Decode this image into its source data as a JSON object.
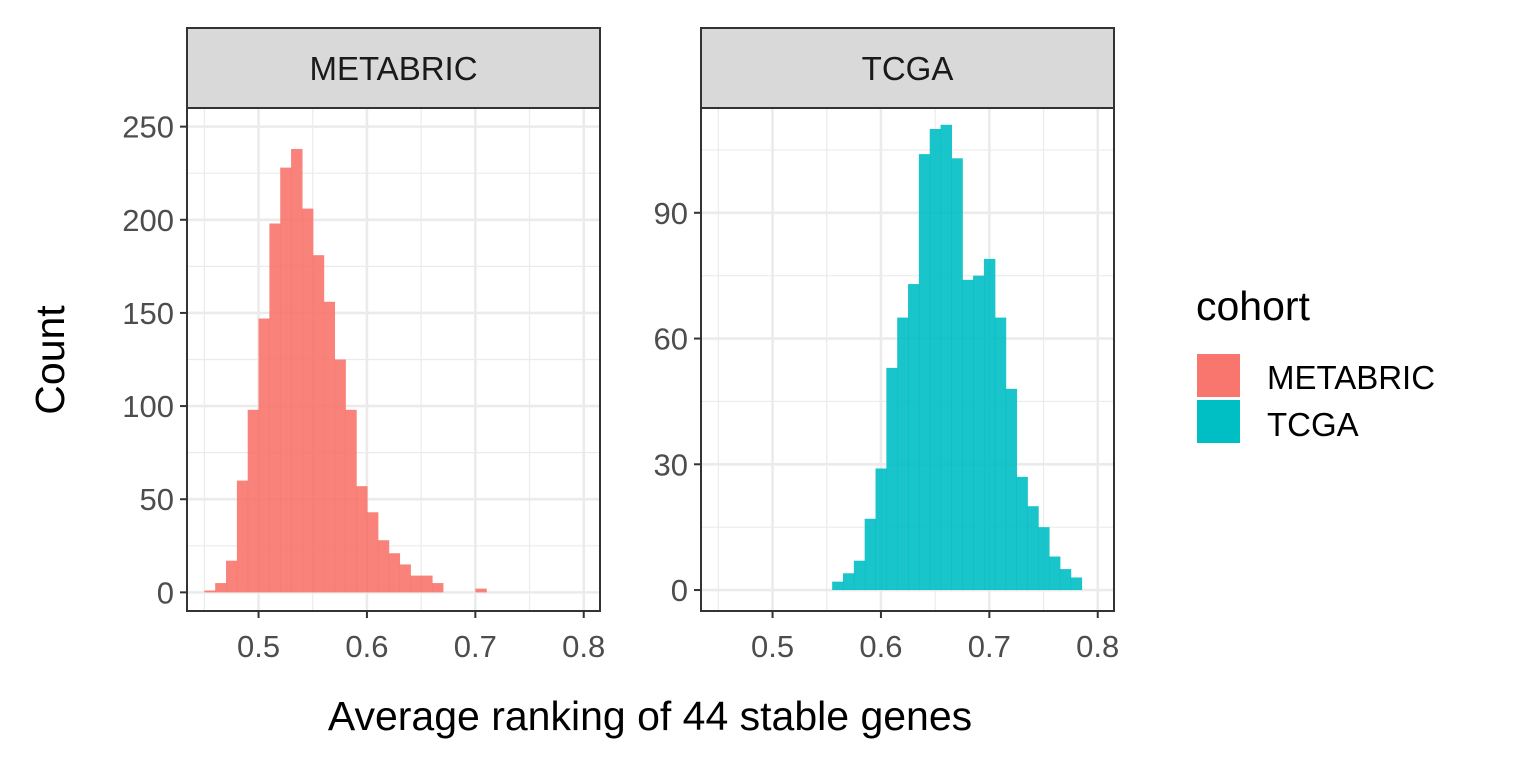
{
  "chart_data": {
    "type": "bar",
    "subtype": "faceted-histogram",
    "xlabel": "Average ranking of 44 stable genes",
    "ylabel": "Count",
    "xlim": [
      0.434,
      0.815
    ],
    "x_ticks": [
      0.5,
      0.6,
      0.7,
      0.8
    ],
    "x_tick_labels": [
      "0.5",
      "0.6",
      "0.7",
      "0.8"
    ],
    "grid": true,
    "legend": {
      "title": "cohort",
      "position": "right",
      "entries": [
        {
          "label": "METABRIC",
          "color": "#F8766D"
        },
        {
          "label": "TCGA",
          "color": "#00BFC4"
        }
      ]
    },
    "facets": [
      {
        "name": "METABRIC",
        "color": "#F8766D",
        "ylim": [
          -10,
          260
        ],
        "y_ticks": [
          0,
          50,
          100,
          150,
          200,
          250
        ],
        "y_tick_labels": [
          "0",
          "50",
          "100",
          "150",
          "200",
          "250"
        ],
        "bin_width": 0.01,
        "bins_x": [
          0.455,
          0.465,
          0.475,
          0.485,
          0.495,
          0.505,
          0.515,
          0.525,
          0.535,
          0.545,
          0.555,
          0.565,
          0.575,
          0.585,
          0.595,
          0.605,
          0.615,
          0.625,
          0.635,
          0.645,
          0.655,
          0.665,
          0.675,
          0.685,
          0.695,
          0.705
        ],
        "values": [
          1,
          5,
          17,
          60,
          98,
          147,
          198,
          228,
          238,
          206,
          181,
          156,
          125,
          98,
          57,
          43,
          28,
          21,
          15,
          9,
          9,
          5,
          0,
          0,
          0,
          2
        ]
      },
      {
        "name": "TCGA",
        "color": "#00BFC4",
        "ylim": [
          -5,
          115
        ],
        "y_ticks": [
          0,
          30,
          60,
          90
        ],
        "y_tick_labels": [
          "0",
          "30",
          "60",
          "90"
        ],
        "bin_width": 0.01,
        "bins_x": [
          0.56,
          0.57,
          0.58,
          0.59,
          0.6,
          0.61,
          0.62,
          0.63,
          0.64,
          0.65,
          0.66,
          0.67,
          0.68,
          0.69,
          0.7,
          0.71,
          0.72,
          0.73,
          0.74,
          0.75,
          0.76,
          0.77,
          0.78,
          0.79,
          0.8
        ],
        "values": [
          2,
          4,
          7,
          17,
          29,
          53,
          65,
          73,
          104,
          110,
          111,
          103,
          74,
          75,
          79,
          65,
          48,
          27,
          20,
          15,
          8,
          5,
          3,
          0,
          0
        ]
      }
    ]
  }
}
